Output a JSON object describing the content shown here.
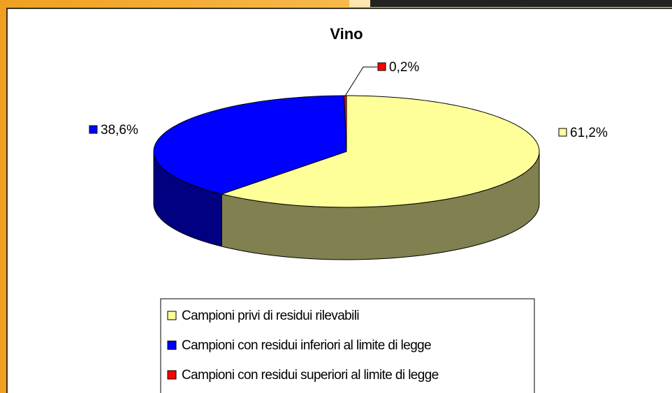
{
  "chart_data": {
    "type": "pie3d",
    "title": "Vino",
    "categories": [
      "Campioni privi di residui rilevabili",
      "Campioni con residui inferiori al limite di legge",
      "Campioni con residui superiori al limite di legge"
    ],
    "values": [
      61.2,
      38.6,
      0.2
    ],
    "value_labels": [
      "61,2%",
      "38,6%",
      "0,2%"
    ],
    "colors": [
      "#ffff99",
      "#0000ff",
      "#ff0000"
    ],
    "side_colors": [
      "#808050",
      "#000080",
      "#800000"
    ],
    "legend": "bottom"
  }
}
